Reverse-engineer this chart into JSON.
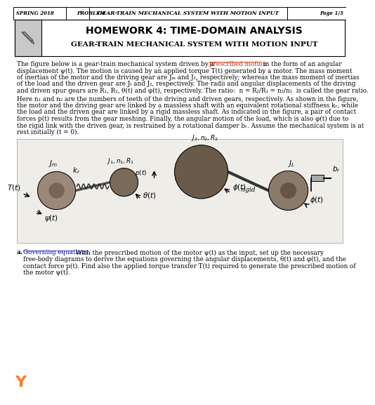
{
  "header_left": "SPRING 2018",
  "header_center_left": "PROBLEM",
  "header_center": "GEAR-TRAIN MECHANICAL SYSTEM WITH MOTION INPUT",
  "header_right": "Page 1/3",
  "title_main": "HOMEWORK 4: TIME-DOMAIN ANALYSIS",
  "title_sub": "GEAR-TRAIN MECHANICAL SYSTEM WITH MOTION INPUT",
  "bg_color": "#ffffff",
  "header_bg": "#e8e8e8",
  "box_bg": "#d0d0d0",
  "prescribed_motion_color": "#cc2200",
  "governing_color": "#0000bb",
  "body_lines_p1": [
    "displacement ψ(t). The motion is caused by an applied torque T(t) generated by a motor. The mass moment",
    "of inertias of the motor and the driving gear are Jₘ and J₁, respectively; whereas the mass moment of inertias",
    "of the load and the driven gear are Jₗ and J₂, respectively. The radii and angular displacements of the driving",
    "and driven spur gears are R₁, R₂, θ(t) and φ(t), respectively. The ratio:  n = R₂/R₁ = n₂/n₁  is called the gear ratio."
  ],
  "body_lines_p2": [
    "Here n₁ and n₂ are the numbers of teeth of the driving and driven gears, respectively. As shown in the figure,",
    "the motor and the driving gear are linked by a massless shaft with an equivalent rotational stiffness kᵣ, while",
    "the load and the driven gear are linked by a rigid massless shaft. As indicated in the figure, a pair of contact",
    "forces p(t) results from the gear meshing. Finally, the angular motion of the load, which is also φ(t) due to",
    "the rigid link with the driven gear, is restrained by a rotational damper bᵣ. Assume the mechanical system is at",
    "rest initially (t = 0)."
  ],
  "line1_prefix": "The figure below is a gear-train mechanical system driven by a ",
  "line1_link": "prescribed motion",
  "line1_suffix": " in the form of an angular",
  "part_a_label": "a.",
  "part_a_link": "Governing equations.",
  "part_a_lines": [
    " With the prescribed motion of the motor ψ(t) as the input, set up the necessary",
    "free-body diagrams to derive the equations governing the angular displacements, θ(t) and φ(t), and the",
    "contact force p(t). Find also the applied torque transfer T(t) required to generate the prescribed motion of",
    "the motor ψ(t)."
  ],
  "chegg_color": "#ff6600"
}
